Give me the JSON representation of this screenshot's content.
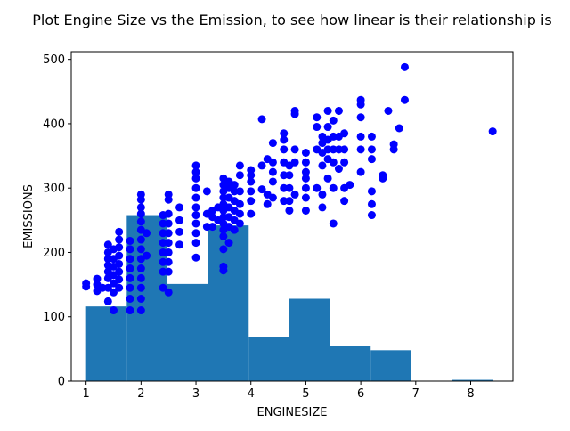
{
  "chart_data": {
    "type": "scatter",
    "title": "Plot Engine Size vs the Emission, to see how linear is their relationship is",
    "xlabel": "ENGINESIZE",
    "ylabel": "EMISSIONS",
    "xlim": [
      0.73,
      8.77
    ],
    "ylim": [
      0,
      512
    ],
    "xticks": [
      1,
      2,
      3,
      4,
      5,
      6,
      7,
      8
    ],
    "yticks": [
      0,
      100,
      200,
      300,
      400,
      500
    ],
    "grid": false,
    "colors": {
      "histogram": "#1f77b4",
      "scatter": "#0000ff"
    },
    "histogram": {
      "bins": [
        {
          "x0": 1.0,
          "x1": 1.74,
          "count": 116
        },
        {
          "x0": 1.74,
          "x1": 2.48,
          "count": 258
        },
        {
          "x0": 2.48,
          "x1": 3.22,
          "count": 151
        },
        {
          "x0": 3.22,
          "x1": 3.96,
          "count": 242
        },
        {
          "x0": 3.96,
          "x1": 4.7,
          "count": 69
        },
        {
          "x0": 4.7,
          "x1": 5.44,
          "count": 128
        },
        {
          "x0": 5.44,
          "x1": 6.18,
          "count": 55
        },
        {
          "x0": 6.18,
          "x1": 6.92,
          "count": 48
        },
        {
          "x0": 6.92,
          "x1": 7.66,
          "count": 0
        },
        {
          "x0": 7.66,
          "x1": 8.4,
          "count": 2
        }
      ]
    },
    "scatter": {
      "points": [
        [
          1.0,
          147
        ],
        [
          1.0,
          152
        ],
        [
          1.2,
          140
        ],
        [
          1.2,
          150
        ],
        [
          1.2,
          159
        ],
        [
          1.3,
          145
        ],
        [
          1.4,
          124
        ],
        [
          1.4,
          145
        ],
        [
          1.4,
          160
        ],
        [
          1.4,
          170
        ],
        [
          1.4,
          180
        ],
        [
          1.4,
          190
        ],
        [
          1.4,
          200
        ],
        [
          1.4,
          212
        ],
        [
          1.5,
          110
        ],
        [
          1.5,
          138
        ],
        [
          1.5,
          152
        ],
        [
          1.5,
          165
        ],
        [
          1.5,
          178
        ],
        [
          1.5,
          190
        ],
        [
          1.5,
          205
        ],
        [
          1.6,
          145
        ],
        [
          1.6,
          158
        ],
        [
          1.6,
          170
        ],
        [
          1.6,
          182
        ],
        [
          1.6,
          195
        ],
        [
          1.6,
          208
        ],
        [
          1.6,
          220
        ],
        [
          1.6,
          232
        ],
        [
          1.8,
          110
        ],
        [
          1.8,
          128
        ],
        [
          1.8,
          145
        ],
        [
          1.8,
          160
        ],
        [
          1.8,
          175
        ],
        [
          1.8,
          190
        ],
        [
          1.8,
          205
        ],
        [
          1.8,
          218
        ],
        [
          2.0,
          110
        ],
        [
          2.0,
          128
        ],
        [
          2.0,
          145
        ],
        [
          2.0,
          160
        ],
        [
          2.0,
          175
        ],
        [
          2.0,
          190
        ],
        [
          2.0,
          205
        ],
        [
          2.0,
          220
        ],
        [
          2.0,
          235
        ],
        [
          2.0,
          248
        ],
        [
          2.0,
          260
        ],
        [
          2.0,
          270
        ],
        [
          2.0,
          282
        ],
        [
          2.0,
          290
        ],
        [
          2.1,
          195
        ],
        [
          2.1,
          230
        ],
        [
          2.4,
          145
        ],
        [
          2.4,
          170
        ],
        [
          2.4,
          185
        ],
        [
          2.4,
          200
        ],
        [
          2.4,
          215
        ],
        [
          2.4,
          230
        ],
        [
          2.4,
          245
        ],
        [
          2.4,
          258
        ],
        [
          2.5,
          138
        ],
        [
          2.5,
          170
        ],
        [
          2.5,
          185
        ],
        [
          2.5,
          200
        ],
        [
          2.5,
          215
        ],
        [
          2.5,
          230
        ],
        [
          2.5,
          245
        ],
        [
          2.5,
          260
        ],
        [
          2.5,
          282
        ],
        [
          2.5,
          290
        ],
        [
          2.7,
          212
        ],
        [
          2.7,
          232
        ],
        [
          2.7,
          250
        ],
        [
          2.7,
          270
        ],
        [
          3.0,
          192
        ],
        [
          3.0,
          215
        ],
        [
          3.0,
          230
        ],
        [
          3.0,
          245
        ],
        [
          3.0,
          258
        ],
        [
          3.0,
          270
        ],
        [
          3.0,
          285
        ],
        [
          3.0,
          300
        ],
        [
          3.0,
          315
        ],
        [
          3.0,
          325
        ],
        [
          3.0,
          335
        ],
        [
          3.2,
          240
        ],
        [
          3.2,
          260
        ],
        [
          3.2,
          295
        ],
        [
          3.3,
          240
        ],
        [
          3.3,
          255
        ],
        [
          3.3,
          265
        ],
        [
          3.4,
          250
        ],
        [
          3.4,
          270
        ],
        [
          3.5,
          172
        ],
        [
          3.5,
          178
        ],
        [
          3.5,
          205
        ],
        [
          3.5,
          225
        ],
        [
          3.5,
          235
        ],
        [
          3.5,
          245
        ],
        [
          3.5,
          255
        ],
        [
          3.5,
          265
        ],
        [
          3.5,
          275
        ],
        [
          3.5,
          285
        ],
        [
          3.5,
          295
        ],
        [
          3.5,
          305
        ],
        [
          3.5,
          315
        ],
        [
          3.6,
          215
        ],
        [
          3.6,
          240
        ],
        [
          3.6,
          255
        ],
        [
          3.6,
          270
        ],
        [
          3.6,
          285
        ],
        [
          3.6,
          300
        ],
        [
          3.6,
          310
        ],
        [
          3.7,
          235
        ],
        [
          3.7,
          250
        ],
        [
          3.7,
          265
        ],
        [
          3.7,
          280
        ],
        [
          3.7,
          295
        ],
        [
          3.7,
          305
        ],
        [
          3.8,
          245
        ],
        [
          3.8,
          260
        ],
        [
          3.8,
          275
        ],
        [
          3.8,
          295
        ],
        [
          3.8,
          320
        ],
        [
          3.8,
          335
        ],
        [
          4.0,
          260
        ],
        [
          4.0,
          280
        ],
        [
          4.0,
          295
        ],
        [
          4.0,
          310
        ],
        [
          4.0,
          320
        ],
        [
          4.0,
          328
        ],
        [
          4.2,
          298
        ],
        [
          4.2,
          335
        ],
        [
          4.2,
          407
        ],
        [
          4.3,
          275
        ],
        [
          4.3,
          290
        ],
        [
          4.3,
          345
        ],
        [
          4.4,
          285
        ],
        [
          4.4,
          310
        ],
        [
          4.4,
          325
        ],
        [
          4.4,
          340
        ],
        [
          4.4,
          370
        ],
        [
          4.6,
          280
        ],
        [
          4.6,
          300
        ],
        [
          4.6,
          320
        ],
        [
          4.6,
          340
        ],
        [
          4.6,
          360
        ],
        [
          4.6,
          375
        ],
        [
          4.6,
          385
        ],
        [
          4.7,
          265
        ],
        [
          4.7,
          280
        ],
        [
          4.7,
          300
        ],
        [
          4.7,
          320
        ],
        [
          4.7,
          335
        ],
        [
          4.8,
          290
        ],
        [
          4.8,
          340
        ],
        [
          4.8,
          360
        ],
        [
          4.8,
          415
        ],
        [
          4.8,
          420
        ],
        [
          5.0,
          265
        ],
        [
          5.0,
          285
        ],
        [
          5.0,
          300
        ],
        [
          5.0,
          315
        ],
        [
          5.0,
          325
        ],
        [
          5.0,
          340
        ],
        [
          5.0,
          355
        ],
        [
          5.2,
          300
        ],
        [
          5.2,
          360
        ],
        [
          5.2,
          395
        ],
        [
          5.2,
          410
        ],
        [
          5.3,
          270
        ],
        [
          5.3,
          290
        ],
        [
          5.3,
          335
        ],
        [
          5.3,
          355
        ],
        [
          5.3,
          370
        ],
        [
          5.3,
          380
        ],
        [
          5.4,
          315
        ],
        [
          5.4,
          345
        ],
        [
          5.4,
          360
        ],
        [
          5.4,
          375
        ],
        [
          5.4,
          395
        ],
        [
          5.4,
          420
        ],
        [
          5.5,
          245
        ],
        [
          5.5,
          300
        ],
        [
          5.5,
          340
        ],
        [
          5.5,
          360
        ],
        [
          5.5,
          380
        ],
        [
          5.5,
          405
        ],
        [
          5.6,
          330
        ],
        [
          5.6,
          360
        ],
        [
          5.6,
          380
        ],
        [
          5.6,
          420
        ],
        [
          5.7,
          280
        ],
        [
          5.7,
          300
        ],
        [
          5.7,
          340
        ],
        [
          5.7,
          360
        ],
        [
          5.7,
          385
        ],
        [
          5.8,
          305
        ],
        [
          6.0,
          325
        ],
        [
          6.0,
          360
        ],
        [
          6.0,
          380
        ],
        [
          6.0,
          410
        ],
        [
          6.0,
          430
        ],
        [
          6.0,
          437
        ],
        [
          6.2,
          258
        ],
        [
          6.2,
          275
        ],
        [
          6.2,
          295
        ],
        [
          6.2,
          345
        ],
        [
          6.2,
          360
        ],
        [
          6.2,
          380
        ],
        [
          6.4,
          315
        ],
        [
          6.4,
          320
        ],
        [
          6.5,
          420
        ],
        [
          6.6,
          360
        ],
        [
          6.6,
          368
        ],
        [
          6.7,
          393
        ],
        [
          6.8,
          437
        ],
        [
          6.8,
          488
        ],
        [
          8.4,
          388
        ]
      ]
    }
  }
}
